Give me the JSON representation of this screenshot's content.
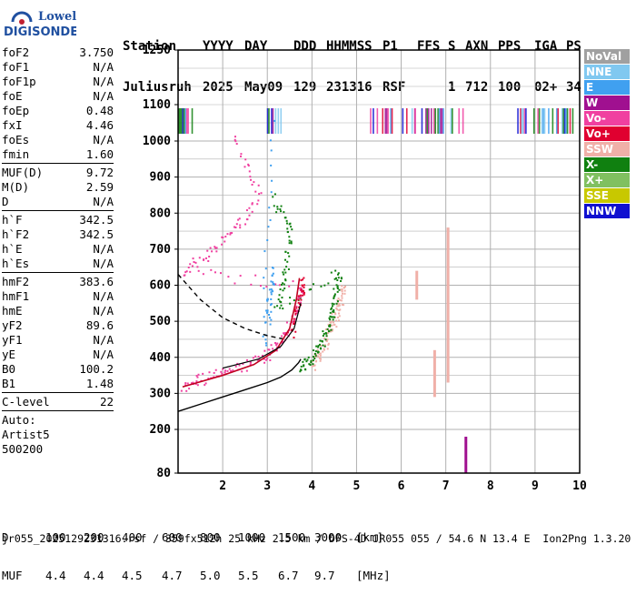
{
  "logo": {
    "line1": "Lowell",
    "line2": "DIGISONDE"
  },
  "header": {
    "row1": [
      "Station",
      "YYYY",
      "DAY",
      "DDD",
      "HHMMSS",
      "P1",
      "FFS",
      "S",
      "AXN",
      "PPS",
      "IGA",
      "PS"
    ],
    "row2": [
      "Juliusruh",
      "2025",
      "May09",
      "129",
      "231316",
      "RSF",
      "",
      "1",
      "712",
      "100",
      "02+",
      "34"
    ]
  },
  "params": {
    "group1": [
      {
        "k": "foF2",
        "v": "3.750"
      },
      {
        "k": "foF1",
        "v": "N/A"
      },
      {
        "k": "foF1p",
        "v": "N/A"
      },
      {
        "k": "foE",
        "v": "N/A"
      },
      {
        "k": "foEp",
        "v": "0.48"
      },
      {
        "k": "fxI",
        "v": "4.46"
      },
      {
        "k": "foEs",
        "v": "N/A"
      },
      {
        "k": "fmin",
        "v": "1.60"
      }
    ],
    "group2": [
      {
        "k": "MUF(D)",
        "v": "9.72"
      },
      {
        "k": "M(D)",
        "v": "2.59"
      },
      {
        "k": "D",
        "v": "N/A"
      }
    ],
    "group3": [
      {
        "k": "h`F",
        "v": "342.5"
      },
      {
        "k": "h`F2",
        "v": "342.5"
      },
      {
        "k": "h`E",
        "v": "N/A"
      },
      {
        "k": "h`Es",
        "v": "N/A"
      }
    ],
    "group4": [
      {
        "k": "hmF2",
        "v": "383.6"
      },
      {
        "k": "hmF1",
        "v": "N/A"
      },
      {
        "k": "hmE",
        "v": "N/A"
      },
      {
        "k": "yF2",
        "v": "89.6"
      },
      {
        "k": "yF1",
        "v": "N/A"
      },
      {
        "k": "yE",
        "v": "N/A"
      },
      {
        "k": "B0",
        "v": "100.2"
      },
      {
        "k": "B1",
        "v": "1.48"
      }
    ],
    "group5": [
      {
        "k": "C-level",
        "v": "22"
      }
    ],
    "auto": [
      "Auto:",
      "Artist5",
      "500200"
    ]
  },
  "legend": [
    {
      "label": "NoVal",
      "color": "#a0a0a0"
    },
    {
      "label": "NNE",
      "color": "#80c8f0"
    },
    {
      "label": "E",
      "color": "#40a0f0"
    },
    {
      "label": "W",
      "color": "#a01090"
    },
    {
      "label": "Vo-",
      "color": "#f040a0"
    },
    {
      "label": "Vo+",
      "color": "#e00030"
    },
    {
      "label": "SSW",
      "color": "#f0b0a8"
    },
    {
      "label": "X-",
      "color": "#108010"
    },
    {
      "label": "X+",
      "color": "#80c060"
    },
    {
      "label": "SSE",
      "color": "#c8c800"
    },
    {
      "label": "NNW",
      "color": "#1010d0"
    }
  ],
  "chart_data": {
    "type": "scatter",
    "x_ticks": [
      "2",
      "3",
      "4",
      "5",
      "6",
      "7",
      "8",
      "9",
      "10"
    ],
    "y_ticks": [
      "80",
      "200",
      "300",
      "400",
      "500",
      "600",
      "700",
      "800",
      "900",
      "1000",
      "1100",
      "1250"
    ],
    "xlim": [
      1,
      10
    ],
    "ylim": [
      80,
      1250
    ],
    "grid": true,
    "series": [
      {
        "name": "SSW",
        "color": "#f0b0a8",
        "points": [
          [
            4.0,
            380
          ],
          [
            4.2,
            420
          ],
          [
            4.4,
            470
          ],
          [
            4.6,
            530
          ],
          [
            4.7,
            600
          ],
          [
            4.3,
            460
          ]
        ]
      },
      {
        "name": "X-",
        "color": "#108010",
        "points": [
          [
            3.7,
            370
          ],
          [
            4.0,
            400
          ],
          [
            4.2,
            440
          ],
          [
            4.4,
            500
          ],
          [
            4.5,
            560
          ],
          [
            4.6,
            640
          ],
          [
            3.2,
            540
          ],
          [
            3.4,
            640
          ],
          [
            3.5,
            760
          ],
          [
            3.1,
            850
          ]
        ]
      },
      {
        "name": "Vo-",
        "color": "#f040a0",
        "points": [
          [
            1.1,
            320
          ],
          [
            1.6,
            345
          ],
          [
            2.2,
            365
          ],
          [
            2.9,
            400
          ],
          [
            3.3,
            440
          ],
          [
            3.6,
            520
          ],
          [
            3.75,
            600
          ],
          [
            1.1,
            640
          ],
          [
            1.7,
            690
          ],
          [
            2.3,
            760
          ],
          [
            2.8,
            850
          ],
          [
            2.2,
            1020
          ]
        ]
      },
      {
        "name": "E",
        "color": "#40a0f0",
        "points": [
          [
            3.0,
            500
          ],
          [
            3.1,
            650
          ],
          [
            2.9,
            440
          ],
          [
            3.1,
            1080
          ]
        ]
      },
      {
        "name": "Vo+",
        "color": "#e00030",
        "points": [
          [
            3.5,
            460
          ],
          [
            3.7,
            560
          ],
          [
            3.8,
            620
          ]
        ]
      }
    ],
    "profile": [
      [
        1.0,
        250
      ],
      [
        1.5,
        270
      ],
      [
        2.0,
        290
      ],
      [
        2.5,
        310
      ],
      [
        3.0,
        330
      ],
      [
        3.3,
        345
      ],
      [
        3.55,
        365
      ],
      [
        3.7,
        385
      ],
      [
        3.75,
        395
      ]
    ],
    "virtual_trace": [
      [
        1.0,
        630
      ],
      [
        1.5,
        560
      ],
      [
        2.0,
        510
      ],
      [
        2.5,
        480
      ],
      [
        3.0,
        460
      ],
      [
        3.4,
        450
      ]
    ]
  },
  "footer": {
    "row1": [
      "D",
      "100",
      "200",
      "400",
      "600",
      "800",
      "1000",
      "1500",
      "3000",
      "[km]"
    ],
    "row2": [
      "MUF",
      "4.4",
      "4.4",
      "4.5",
      "4.7",
      "5.0",
      "5.5",
      "6.7",
      "9.7",
      "[MHz]"
    ],
    "info": "jr055_2025129231316.rsf / 359fx512h 25 kHz 2.5 km / DPS-4D JR055 055 / 54.6 N 13.4 E  Ion2Png 1.3.20"
  }
}
